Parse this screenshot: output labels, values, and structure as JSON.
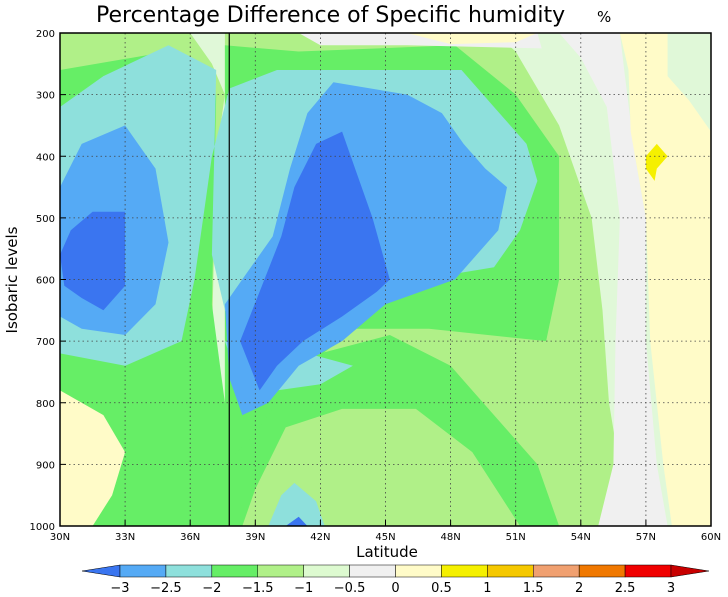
{
  "chart_data": {
    "type": "heatmap",
    "title": "Percentage Difference of Specific humidity",
    "title_unit": "%",
    "xlabel": "Latitude",
    "ylabel": "Isobaric levels",
    "x": [
      30,
      33,
      36,
      39,
      42,
      45,
      48,
      51,
      54,
      57,
      60
    ],
    "x_tick_labels": [
      "30N",
      "33N",
      "36N",
      "39N",
      "42N",
      "45N",
      "48N",
      "51N",
      "54N",
      "57N",
      "60N"
    ],
    "y": [
      200,
      300,
      400,
      500,
      600,
      700,
      800,
      900,
      1000
    ],
    "y_tick_labels": [
      "200",
      "300",
      "400",
      "500",
      "600",
      "700",
      "800",
      "900",
      "1000"
    ],
    "xlim": [
      30,
      60
    ],
    "ylim": [
      1000,
      200
    ],
    "grid": true,
    "vertical_marker_x": 37.8,
    "contour_levels": [
      -3,
      -2.5,
      -2,
      -1.5,
      -1,
      -0.5,
      0,
      0.5,
      1,
      1.5,
      2,
      2.5,
      3
    ],
    "colorbar_labels": [
      "−3",
      "−2.5",
      "−2",
      "−1.5",
      "−1",
      "−0.5",
      "0",
      "0.5",
      "1",
      "1.5",
      "2",
      "2.5",
      "3"
    ],
    "colors": [
      "#3a75f0",
      "#55aaf5",
      "#8ee0dc",
      "#66ee66",
      "#b0f088",
      "#ddfad0",
      "#f0f0f0",
      "#fffbc8",
      "#f5f000",
      "#f5c800",
      "#f0a070",
      "#f07800",
      "#f00000",
      "#c80000"
    ],
    "regions": [
      {
        "level": -1,
        "polygon": [
          [
            30,
            200
          ],
          [
            36,
            200
          ],
          [
            37,
            250
          ],
          [
            37.6,
            300
          ],
          [
            37.2,
            400
          ],
          [
            37,
            700
          ],
          [
            37.6,
            800
          ],
          [
            38.4,
            850
          ],
          [
            39,
            800
          ],
          [
            41,
            740
          ],
          [
            43.5,
            740
          ],
          [
            47,
            820
          ],
          [
            50,
            900
          ],
          [
            52,
            960
          ],
          [
            53,
            1000
          ],
          [
            30,
            1000
          ]
        ]
      },
      {
        "level": -1,
        "polygon": [
          [
            37.6,
            200
          ],
          [
            50,
            200
          ],
          [
            51,
            230
          ],
          [
            53,
            350
          ],
          [
            54.5,
            500
          ],
          [
            55,
            650
          ],
          [
            55.3,
            800
          ],
          [
            56,
            950
          ],
          [
            56,
            1000
          ],
          [
            46,
            1000
          ],
          [
            42.5,
            910
          ],
          [
            39.2,
            920
          ],
          [
            37.6,
            1000
          ]
        ]
      },
      {
        "level": -1.5,
        "polygon": [
          [
            30,
            260
          ],
          [
            35,
            230
          ],
          [
            37.2,
            300
          ],
          [
            37,
            640
          ],
          [
            37.6,
            800
          ],
          [
            38.2,
            860
          ],
          [
            39.8,
            800
          ],
          [
            42,
            720
          ],
          [
            45.2,
            690
          ],
          [
            48,
            740
          ],
          [
            50,
            820
          ],
          [
            52,
            900
          ],
          [
            53,
            1000
          ],
          [
            51.2,
            1000
          ],
          [
            49,
            880
          ],
          [
            46.4,
            810
          ],
          [
            43,
            810
          ],
          [
            40.4,
            840
          ],
          [
            39,
            940
          ],
          [
            38.4,
            1000
          ],
          [
            30,
            1000
          ]
        ]
      },
      {
        "level": -1.5,
        "polygon": [
          [
            37.6,
            220
          ],
          [
            41,
            230
          ],
          [
            48.2,
            220
          ],
          [
            51,
            300
          ],
          [
            53,
            400
          ],
          [
            53,
            600
          ],
          [
            52.4,
            700
          ],
          [
            47,
            680
          ],
          [
            43.6,
            680
          ],
          [
            41,
            750
          ],
          [
            39,
            850
          ],
          [
            37.6,
            900
          ]
        ]
      },
      {
        "level": -2,
        "polygon": [
          [
            30,
            320
          ],
          [
            32,
            270
          ],
          [
            35,
            220
          ],
          [
            37.2,
            260
          ],
          [
            37,
            560
          ],
          [
            37.6,
            650
          ],
          [
            38.4,
            700
          ],
          [
            40,
            640
          ],
          [
            43,
            620
          ],
          [
            46.6,
            600
          ],
          [
            50,
            580
          ],
          [
            51.2,
            520
          ],
          [
            52,
            440
          ],
          [
            51.5,
            380
          ],
          [
            50,
            320
          ],
          [
            48.5,
            260
          ],
          [
            40,
            260
          ],
          [
            37.8,
            290
          ],
          [
            37,
            400
          ],
          [
            36.2,
            600
          ],
          [
            35.6,
            700
          ],
          [
            33,
            740
          ],
          [
            30,
            720
          ]
        ]
      },
      {
        "level": -2,
        "polygon": [
          [
            37.6,
            700
          ],
          [
            38.2,
            760
          ],
          [
            39,
            800
          ],
          [
            40,
            780
          ],
          [
            42,
            770
          ],
          [
            43.5,
            740
          ],
          [
            41.4,
            720
          ],
          [
            38.6,
            710
          ]
        ]
      },
      {
        "level": -2,
        "polygon": [
          [
            39.6,
            1000
          ],
          [
            42.2,
            1000
          ],
          [
            41.8,
            960
          ],
          [
            40.8,
            930
          ],
          [
            40.2,
            950
          ]
        ]
      },
      {
        "level": -2.5,
        "polygon": [
          [
            30,
            450
          ],
          [
            31,
            380
          ],
          [
            33,
            350
          ],
          [
            34.4,
            420
          ],
          [
            35,
            540
          ],
          [
            34.4,
            640
          ],
          [
            33,
            690
          ],
          [
            31,
            680
          ],
          [
            30,
            660
          ]
        ]
      },
      {
        "level": -2.5,
        "polygon": [
          [
            37.6,
            640
          ],
          [
            37.8,
            760
          ],
          [
            38.4,
            820
          ],
          [
            39.6,
            800
          ],
          [
            41,
            740
          ],
          [
            43,
            700
          ],
          [
            45,
            640
          ],
          [
            48.2,
            600
          ],
          [
            50.2,
            520
          ],
          [
            50.6,
            450
          ],
          [
            49.6,
            420
          ],
          [
            48.6,
            380
          ],
          [
            47.6,
            330
          ],
          [
            46,
            300
          ],
          [
            42.6,
            280
          ],
          [
            41.4,
            330
          ],
          [
            40.6,
            420
          ],
          [
            39.8,
            530
          ],
          [
            38.6,
            590
          ]
        ]
      },
      {
        "level": -3,
        "polygon": [
          [
            30,
            560
          ],
          [
            30.5,
            520
          ],
          [
            31.5,
            490
          ],
          [
            33,
            490
          ],
          [
            33,
            610
          ],
          [
            32,
            650
          ],
          [
            31,
            630
          ],
          [
            30.2,
            610
          ]
        ]
      },
      {
        "level": -3,
        "polygon": [
          [
            38.3,
            700
          ],
          [
            39.2,
            780
          ],
          [
            40,
            740
          ],
          [
            41.2,
            700
          ],
          [
            43,
            660
          ],
          [
            44.6,
            620
          ],
          [
            45.2,
            600
          ],
          [
            44.4,
            500
          ],
          [
            43.6,
            420
          ],
          [
            43,
            360
          ],
          [
            41.8,
            380
          ],
          [
            40.8,
            450
          ],
          [
            40.2,
            530
          ],
          [
            39.2,
            620
          ]
        ]
      },
      {
        "level": -3,
        "polygon": [
          [
            40.4,
            1000
          ],
          [
            41.4,
            1000
          ],
          [
            41,
            985
          ]
        ]
      },
      {
        "level": 0,
        "polygon": [
          [
            53,
            200
          ],
          [
            55.8,
            200
          ],
          [
            56,
            260
          ],
          [
            56.5,
            400
          ],
          [
            57,
            500
          ],
          [
            57,
            700
          ],
          [
            57.5,
            900
          ],
          [
            58,
            1000
          ],
          [
            54.8,
            1000
          ],
          [
            55.5,
            900
          ],
          [
            55.6,
            700
          ],
          [
            55.8,
            500
          ],
          [
            55.2,
            320
          ],
          [
            54,
            240
          ]
        ]
      },
      {
        "level": 0,
        "polygon": [
          [
            41,
            200
          ],
          [
            52,
            200
          ],
          [
            52.2,
            225
          ],
          [
            46,
            220
          ],
          [
            42,
            220
          ]
        ]
      },
      {
        "level": 0.5,
        "polygon": [
          [
            55.8,
            200
          ],
          [
            58,
            200
          ],
          [
            58,
            270
          ],
          [
            59,
            310
          ],
          [
            60,
            360
          ],
          [
            60,
            1000
          ],
          [
            58.2,
            1000
          ],
          [
            57.8,
            900
          ],
          [
            57.2,
            700
          ],
          [
            57,
            500
          ],
          [
            56.3,
            360
          ],
          [
            56.2,
            260
          ]
        ]
      },
      {
        "level": 0.5,
        "polygon": [
          [
            30,
            780
          ],
          [
            32,
            820
          ],
          [
            33,
            880
          ],
          [
            32.4,
            950
          ],
          [
            31.5,
            1000
          ],
          [
            30,
            1000
          ]
        ]
      },
      {
        "level": 0.5,
        "polygon": [
          [
            46,
            200
          ],
          [
            52,
            200
          ],
          [
            51,
            215
          ],
          [
            48,
            218
          ]
        ]
      },
      {
        "level": 1,
        "polygon": [
          [
            57,
            400
          ],
          [
            57.5,
            380
          ],
          [
            58,
            400
          ],
          [
            57.5,
            420
          ],
          [
            57.4,
            440
          ],
          [
            57,
            420
          ]
        ]
      }
    ]
  }
}
